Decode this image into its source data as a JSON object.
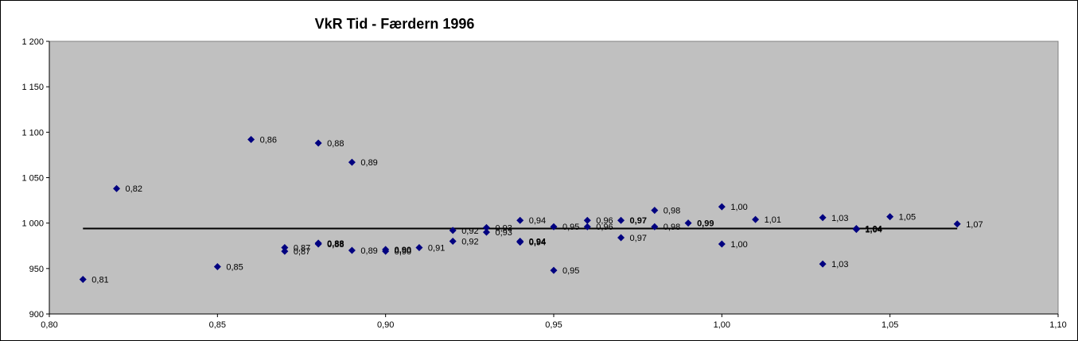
{
  "chart_data": {
    "type": "scatter",
    "title": "VkR Tid - Færdern 1996",
    "xlabel": "",
    "ylabel": "",
    "xlim": [
      0.8,
      1.1
    ],
    "ylim": [
      900,
      1200
    ],
    "x_ticks": [
      0.8,
      0.85,
      0.9,
      0.95,
      1.0,
      1.05,
      1.1
    ],
    "x_tick_labels": [
      "0,80",
      "0,85",
      "0,90",
      "0,95",
      "1,00",
      "1,05",
      "1,10"
    ],
    "y_ticks": [
      900,
      950,
      1000,
      1050,
      1100,
      1150,
      1200
    ],
    "y_tick_labels": [
      "900",
      "950",
      "1 000",
      "1 050",
      "1 100",
      "1 150",
      "1 200"
    ],
    "grid": false,
    "legend": "none",
    "plot_background": "#C0C0C0",
    "marker_color": "#000080",
    "reference_line": {
      "y": 994,
      "x_range": [
        0.81,
        1.07
      ],
      "color": "#000000"
    },
    "points": [
      {
        "x": 0.81,
        "y": 938,
        "label": "0,81",
        "bold": false
      },
      {
        "x": 0.82,
        "y": 1038,
        "label": "0,82",
        "bold": false
      },
      {
        "x": 0.85,
        "y": 952,
        "label": "0,85",
        "bold": false
      },
      {
        "x": 0.86,
        "y": 1092,
        "label": "0,86",
        "bold": false
      },
      {
        "x": 0.87,
        "y": 973,
        "label": "0,87",
        "bold": false
      },
      {
        "x": 0.87,
        "y": 969,
        "label": "0,87",
        "bold": false
      },
      {
        "x": 0.88,
        "y": 1088,
        "label": "0,88",
        "bold": false
      },
      {
        "x": 0.88,
        "y": 978,
        "label": "0,88",
        "bold": true
      },
      {
        "x": 0.88,
        "y": 977,
        "label": "0,88",
        "bold": false
      },
      {
        "x": 0.89,
        "y": 1067,
        "label": "0,89",
        "bold": false
      },
      {
        "x": 0.89,
        "y": 970,
        "label": "0,89",
        "bold": false
      },
      {
        "x": 0.9,
        "y": 971,
        "label": "0,90",
        "bold": true
      },
      {
        "x": 0.9,
        "y": 969,
        "label": "0,90",
        "bold": false
      },
      {
        "x": 0.91,
        "y": 973,
        "label": "0,91",
        "bold": false
      },
      {
        "x": 0.92,
        "y": 992,
        "label": "0,92",
        "bold": false
      },
      {
        "x": 0.92,
        "y": 980,
        "label": "0,92",
        "bold": false
      },
      {
        "x": 0.93,
        "y": 995,
        "label": "0,93",
        "bold": false
      },
      {
        "x": 0.93,
        "y": 990,
        "label": "0,93",
        "bold": false
      },
      {
        "x": 0.94,
        "y": 1003,
        "label": "0,94",
        "bold": false
      },
      {
        "x": 0.94,
        "y": 980,
        "label": "0,94",
        "bold": true
      },
      {
        "x": 0.94,
        "y": 979,
        "label": "0,94",
        "bold": false
      },
      {
        "x": 0.95,
        "y": 996,
        "label": "0,95",
        "bold": false
      },
      {
        "x": 0.95,
        "y": 948,
        "label": "0,95",
        "bold": false
      },
      {
        "x": 0.96,
        "y": 1003,
        "label": "0,96",
        "bold": false
      },
      {
        "x": 0.96,
        "y": 996,
        "label": "0,96",
        "bold": false
      },
      {
        "x": 0.97,
        "y": 1003,
        "label": "0,97",
        "bold": true
      },
      {
        "x": 0.97,
        "y": 984,
        "label": "0,97",
        "bold": false
      },
      {
        "x": 0.98,
        "y": 1014,
        "label": "0,98",
        "bold": false
      },
      {
        "x": 0.98,
        "y": 996,
        "label": "0,98",
        "bold": false
      },
      {
        "x": 0.99,
        "y": 1000,
        "label": "0,99",
        "bold": true
      },
      {
        "x": 1.0,
        "y": 1018,
        "label": "1,00",
        "bold": false
      },
      {
        "x": 1.0,
        "y": 977,
        "label": "1,00",
        "bold": false
      },
      {
        "x": 1.01,
        "y": 1004,
        "label": "1,01",
        "bold": false
      },
      {
        "x": 1.03,
        "y": 1006,
        "label": "1,03",
        "bold": false
      },
      {
        "x": 1.03,
        "y": 955,
        "label": "1,03",
        "bold": false
      },
      {
        "x": 1.04,
        "y": 994,
        "label": "1,04",
        "bold": true
      },
      {
        "x": 1.04,
        "y": 993,
        "label": "1,04",
        "bold": false
      },
      {
        "x": 1.05,
        "y": 1007,
        "label": "1,05",
        "bold": false
      },
      {
        "x": 1.07,
        "y": 999,
        "label": "1,07",
        "bold": false
      }
    ]
  }
}
